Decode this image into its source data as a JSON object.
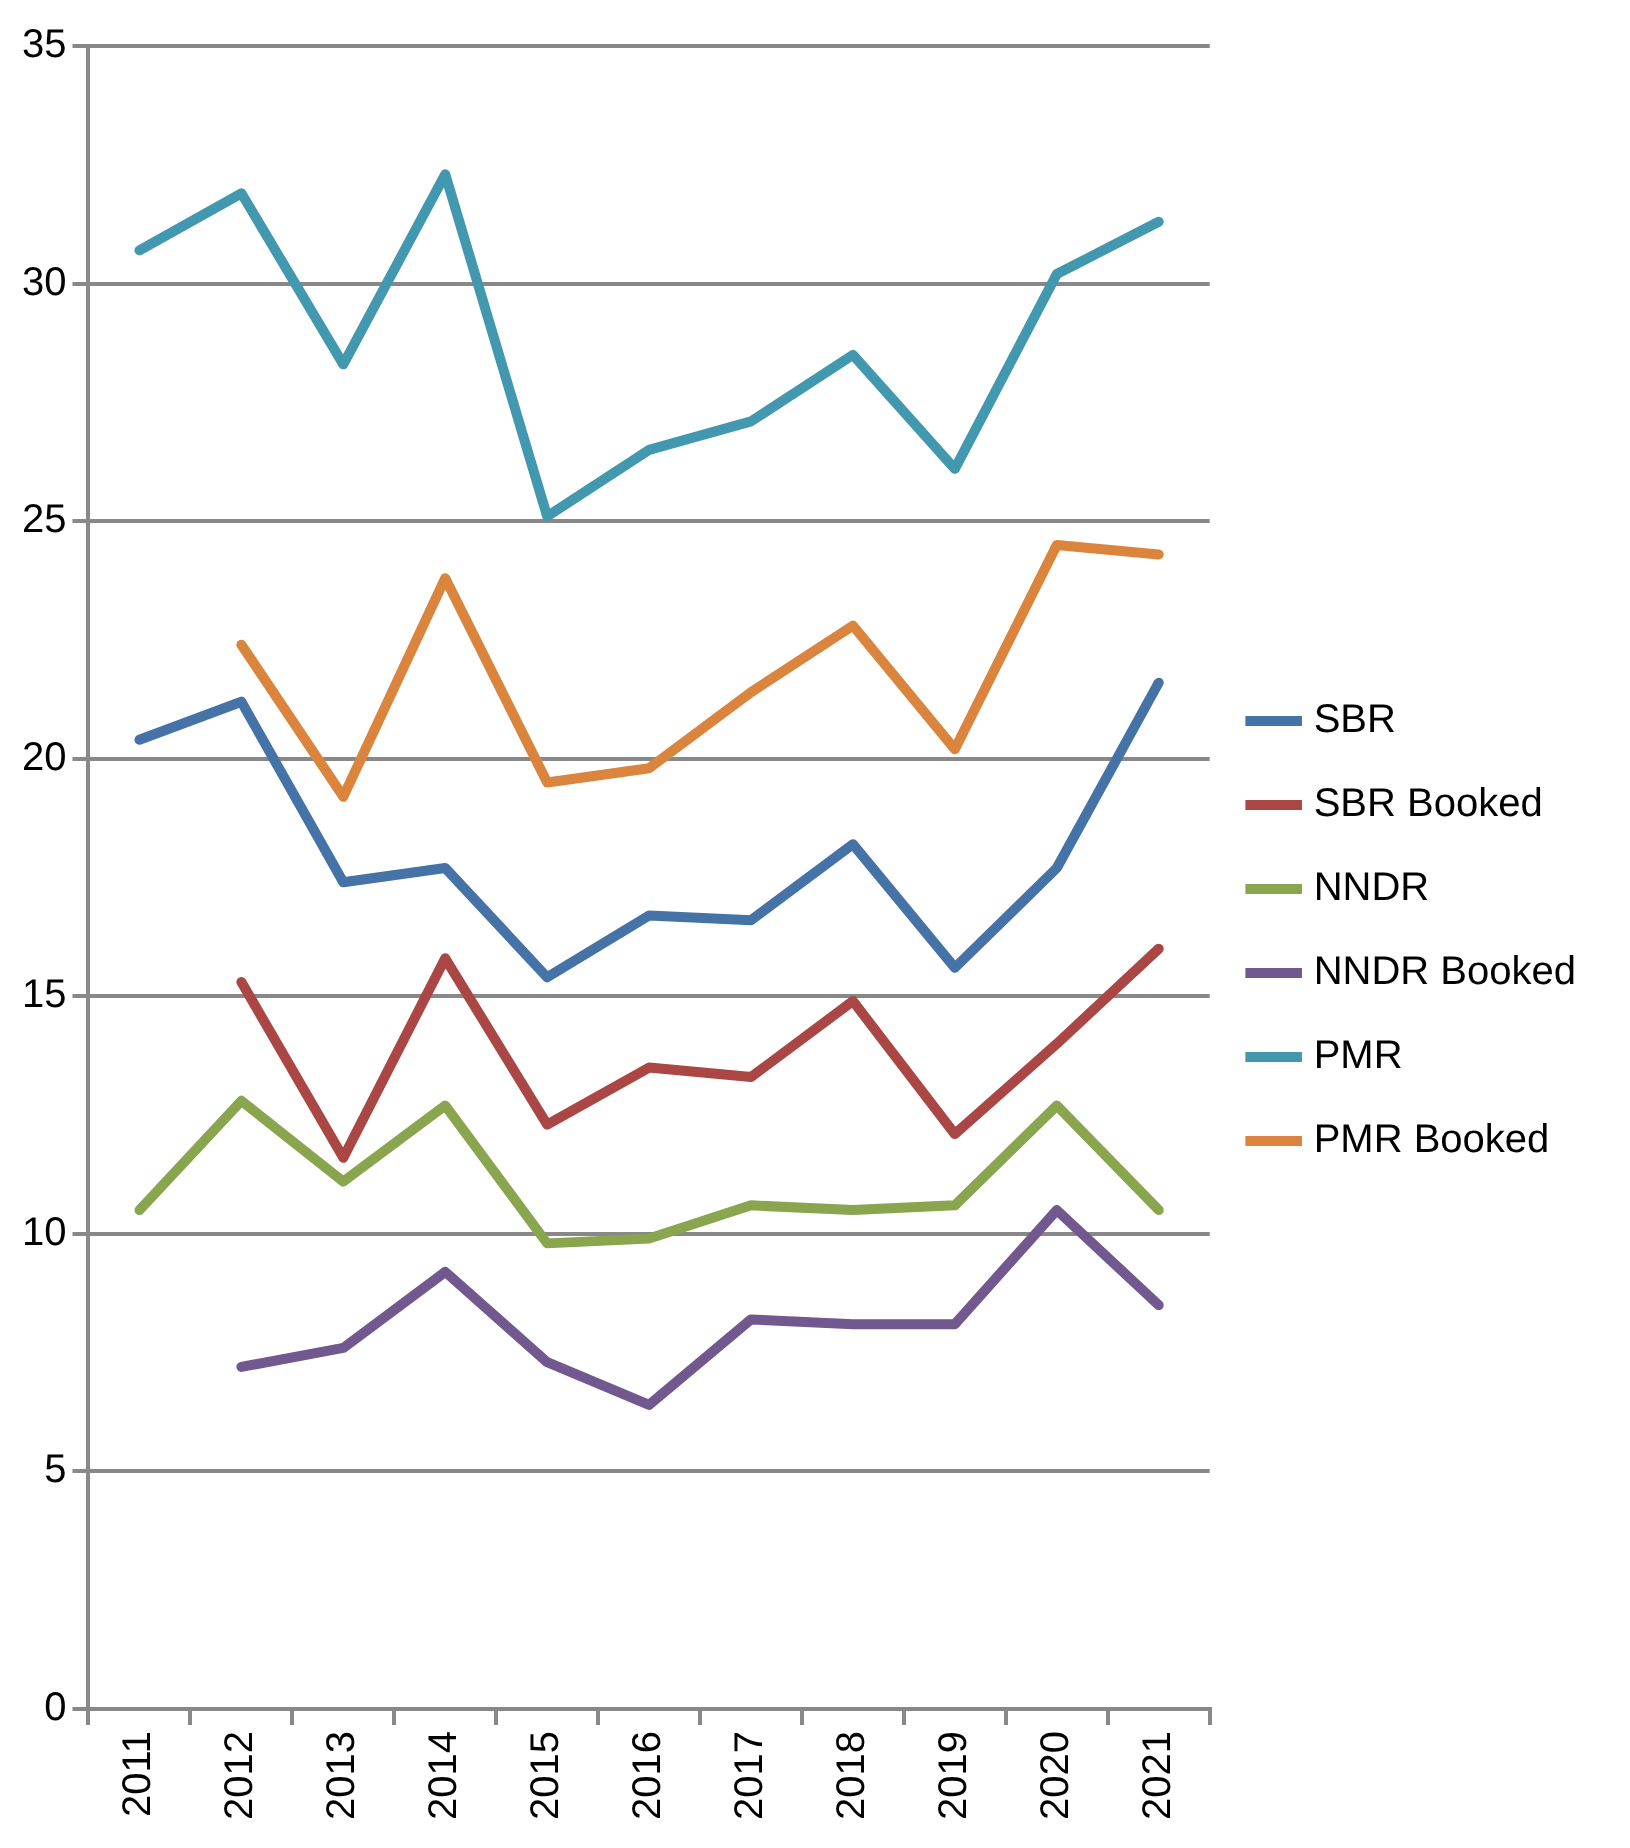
{
  "chart_data": {
    "type": "line",
    "categories": [
      "2011",
      "2012",
      "2013",
      "2014",
      "2015",
      "2016",
      "2017",
      "2018",
      "2019",
      "2020",
      "2021"
    ],
    "series": [
      {
        "name": "SBR",
        "color": "#4572a7",
        "values": [
          20.4,
          21.2,
          17.4,
          17.7,
          15.4,
          16.7,
          16.6,
          18.2,
          15.6,
          17.7,
          21.6
        ]
      },
      {
        "name": "SBR Booked",
        "color": "#aa4643",
        "values": [
          null,
          15.3,
          11.6,
          15.8,
          12.3,
          13.5,
          13.3,
          14.9,
          12.1,
          14.0,
          16.0
        ]
      },
      {
        "name": "NNDR",
        "color": "#89a54e",
        "values": [
          10.5,
          12.8,
          11.1,
          12.7,
          9.8,
          9.9,
          10.6,
          10.5,
          10.6,
          12.7,
          10.5
        ]
      },
      {
        "name": "NNDR Booked",
        "color": "#71588f",
        "values": [
          null,
          7.2,
          7.6,
          9.2,
          7.3,
          6.4,
          8.2,
          8.1,
          8.1,
          10.5,
          8.5
        ]
      },
      {
        "name": "PMR",
        "color": "#4198af",
        "values": [
          30.7,
          31.9,
          28.3,
          32.3,
          25.1,
          26.5,
          27.1,
          28.5,
          26.1,
          30.2,
          31.3
        ]
      },
      {
        "name": "PMR Booked",
        "color": "#db843d",
        "values": [
          null,
          22.4,
          19.2,
          23.8,
          19.5,
          19.8,
          21.4,
          22.8,
          20.2,
          24.5,
          24.3
        ]
      }
    ],
    "ylim": [
      0,
      35
    ],
    "yticks": [
      0,
      5,
      10,
      15,
      20,
      25,
      30,
      35
    ],
    "grid": "y",
    "legend": "right",
    "marker": "none",
    "line_style": "solid"
  }
}
